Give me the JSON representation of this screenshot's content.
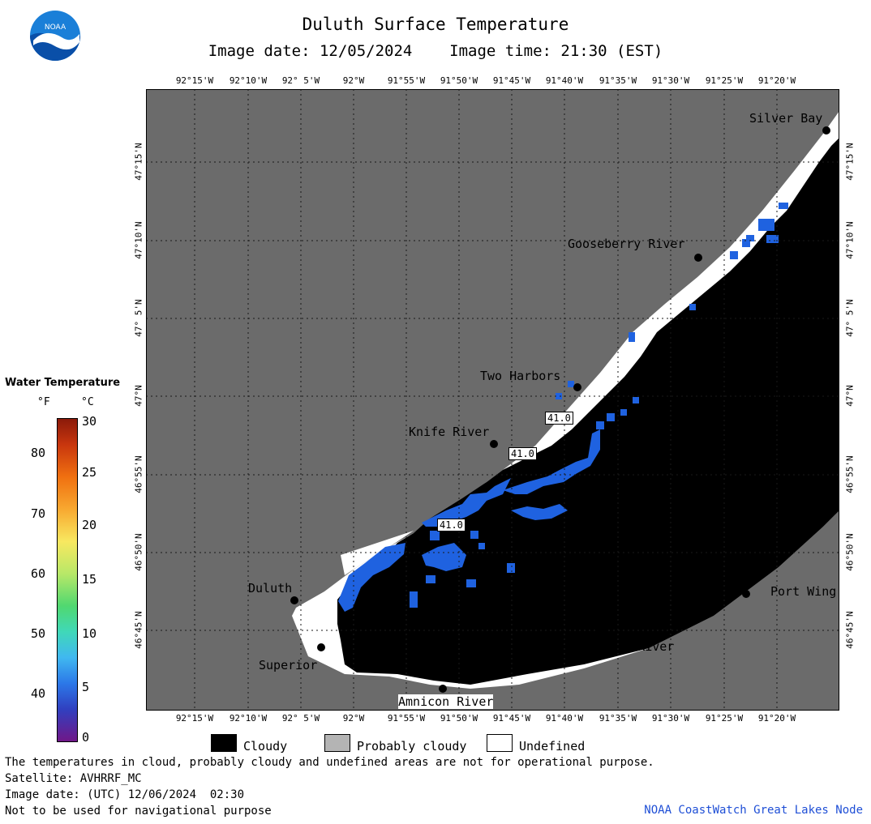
{
  "header": {
    "title": "Duluth Surface Temperature",
    "image_date_label": "Image date: 12/05/2024",
    "image_time_label": "Image time: 21:30 (EST)"
  },
  "logo": {
    "text": "NOAA"
  },
  "map": {
    "longitudes": [
      "92°15'W",
      "92°10'W",
      "92° 5'W",
      "92°W",
      "91°55'W",
      "91°50'W",
      "91°45'W",
      "91°40'W",
      "91°35'W",
      "91°30'W",
      "91°25'W",
      "91°20'W"
    ],
    "latitudes": [
      "47°15'N",
      "47°10'N",
      "47° 5'N",
      "47°N",
      "46°55'N",
      "46°50'N",
      "46°45'N"
    ],
    "places": {
      "silver_bay": "Silver Bay",
      "gooseberry_river": "Gooseberry River",
      "two_harbors": "Two Harbors",
      "knife_river": "Knife River",
      "duluth": "Duluth",
      "superior": "Superior",
      "amnicon_river": "Amnicon River",
      "brule_river": "Brule River",
      "port_wing": "Port Wing"
    },
    "temperature_labels": [
      "41.0",
      "41.0",
      "41.0"
    ],
    "colors": {
      "land": "#6b6b6b",
      "cloud": "#000000",
      "undefined": "#ffffff",
      "water_41f": "#1f62e0"
    }
  },
  "legend": {
    "title": "Water Temperature",
    "unit_f": "°F",
    "unit_c": "°C",
    "fahrenheit_ticks": [
      "80",
      "70",
      "60",
      "50",
      "40"
    ],
    "celsius_ticks": [
      "30",
      "25",
      "20",
      "15",
      "10",
      "5",
      "0"
    ]
  },
  "key": {
    "cloudy": "Cloudy",
    "probably_cloudy": "Probably cloudy",
    "undefined": "Undefined"
  },
  "footer": {
    "disclaimer": "The temperatures in cloud, probably cloudy and undefined areas are not for operational purpose.",
    "satellite": "Satellite: AVHRRF_MC",
    "utc_date": "Image date: (UTC) 12/06/2024  02:30",
    "navigation": "Not to be used for navigational purpose",
    "credit": "NOAA CoastWatch Great Lakes Node"
  }
}
